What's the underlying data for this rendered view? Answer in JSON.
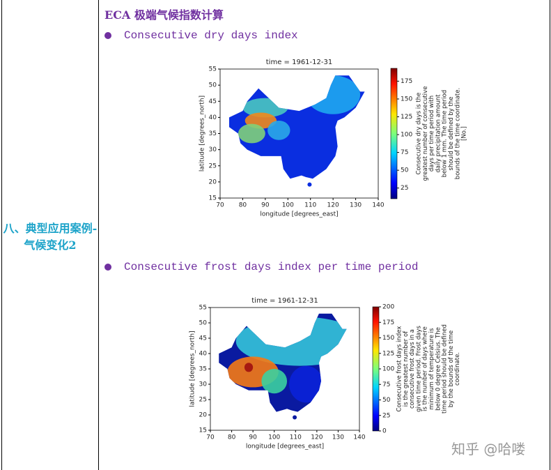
{
  "left_cell": "八、典型应用案例-气候变化2",
  "title": "ECA 极端气候指数计算",
  "sections": [
    {
      "bullet": "Consecutive dry days index",
      "figure": {
        "type": "map",
        "title": "time = 1961-12-31",
        "x_label": "longitude [degrees_east]",
        "y_label": "latitude [degrees_north]",
        "xlim": [
          70,
          140
        ],
        "xticks": [
          70,
          80,
          90,
          100,
          110,
          120,
          130,
          140
        ],
        "ylim": [
          15,
          55
        ],
        "yticks": [
          15,
          20,
          25,
          30,
          35,
          40,
          45,
          50,
          55
        ],
        "colorbar": {
          "lim": [
            10,
            193
          ],
          "ticks": [
            25,
            50,
            75,
            100,
            125,
            150,
            175
          ],
          "label": [
            "Consecutive dry days is the",
            "greatest number of consecutive",
            "days per time period with",
            "daily precipitation amount",
            "below 1 mm. The time period",
            "should be defined by the",
            "bounds of the time coordinate.",
            "[No.]"
          ]
        }
      }
    },
    {
      "bullet": "Consecutive frost days index per time period",
      "figure": {
        "type": "map",
        "title": "time = 1961-12-31",
        "x_label": "longitude [degrees_east]",
        "y_label": "latitude [degrees_north]",
        "xlim": [
          70,
          140
        ],
        "xticks": [
          70,
          80,
          90,
          100,
          110,
          120,
          130,
          140
        ],
        "ylim": [
          15,
          55
        ],
        "yticks": [
          15,
          20,
          25,
          30,
          35,
          40,
          45,
          50,
          55
        ],
        "colorbar": {
          "lim": [
            0,
            200
          ],
          "ticks": [
            0,
            25,
            50,
            75,
            100,
            125,
            150,
            175,
            200
          ],
          "label": [
            "Consecutive frost days index",
            "is the greatest number of",
            "consecutive frost days in a",
            "given time period. Frost days",
            "is the number of days where",
            "minimum of temperature is",
            "below 0 degree Celsius. The",
            "time period should be defined",
            "by the bounds of the time",
            "coordinate."
          ]
        }
      }
    }
  ],
  "watermark": "知乎 @哈喽"
}
